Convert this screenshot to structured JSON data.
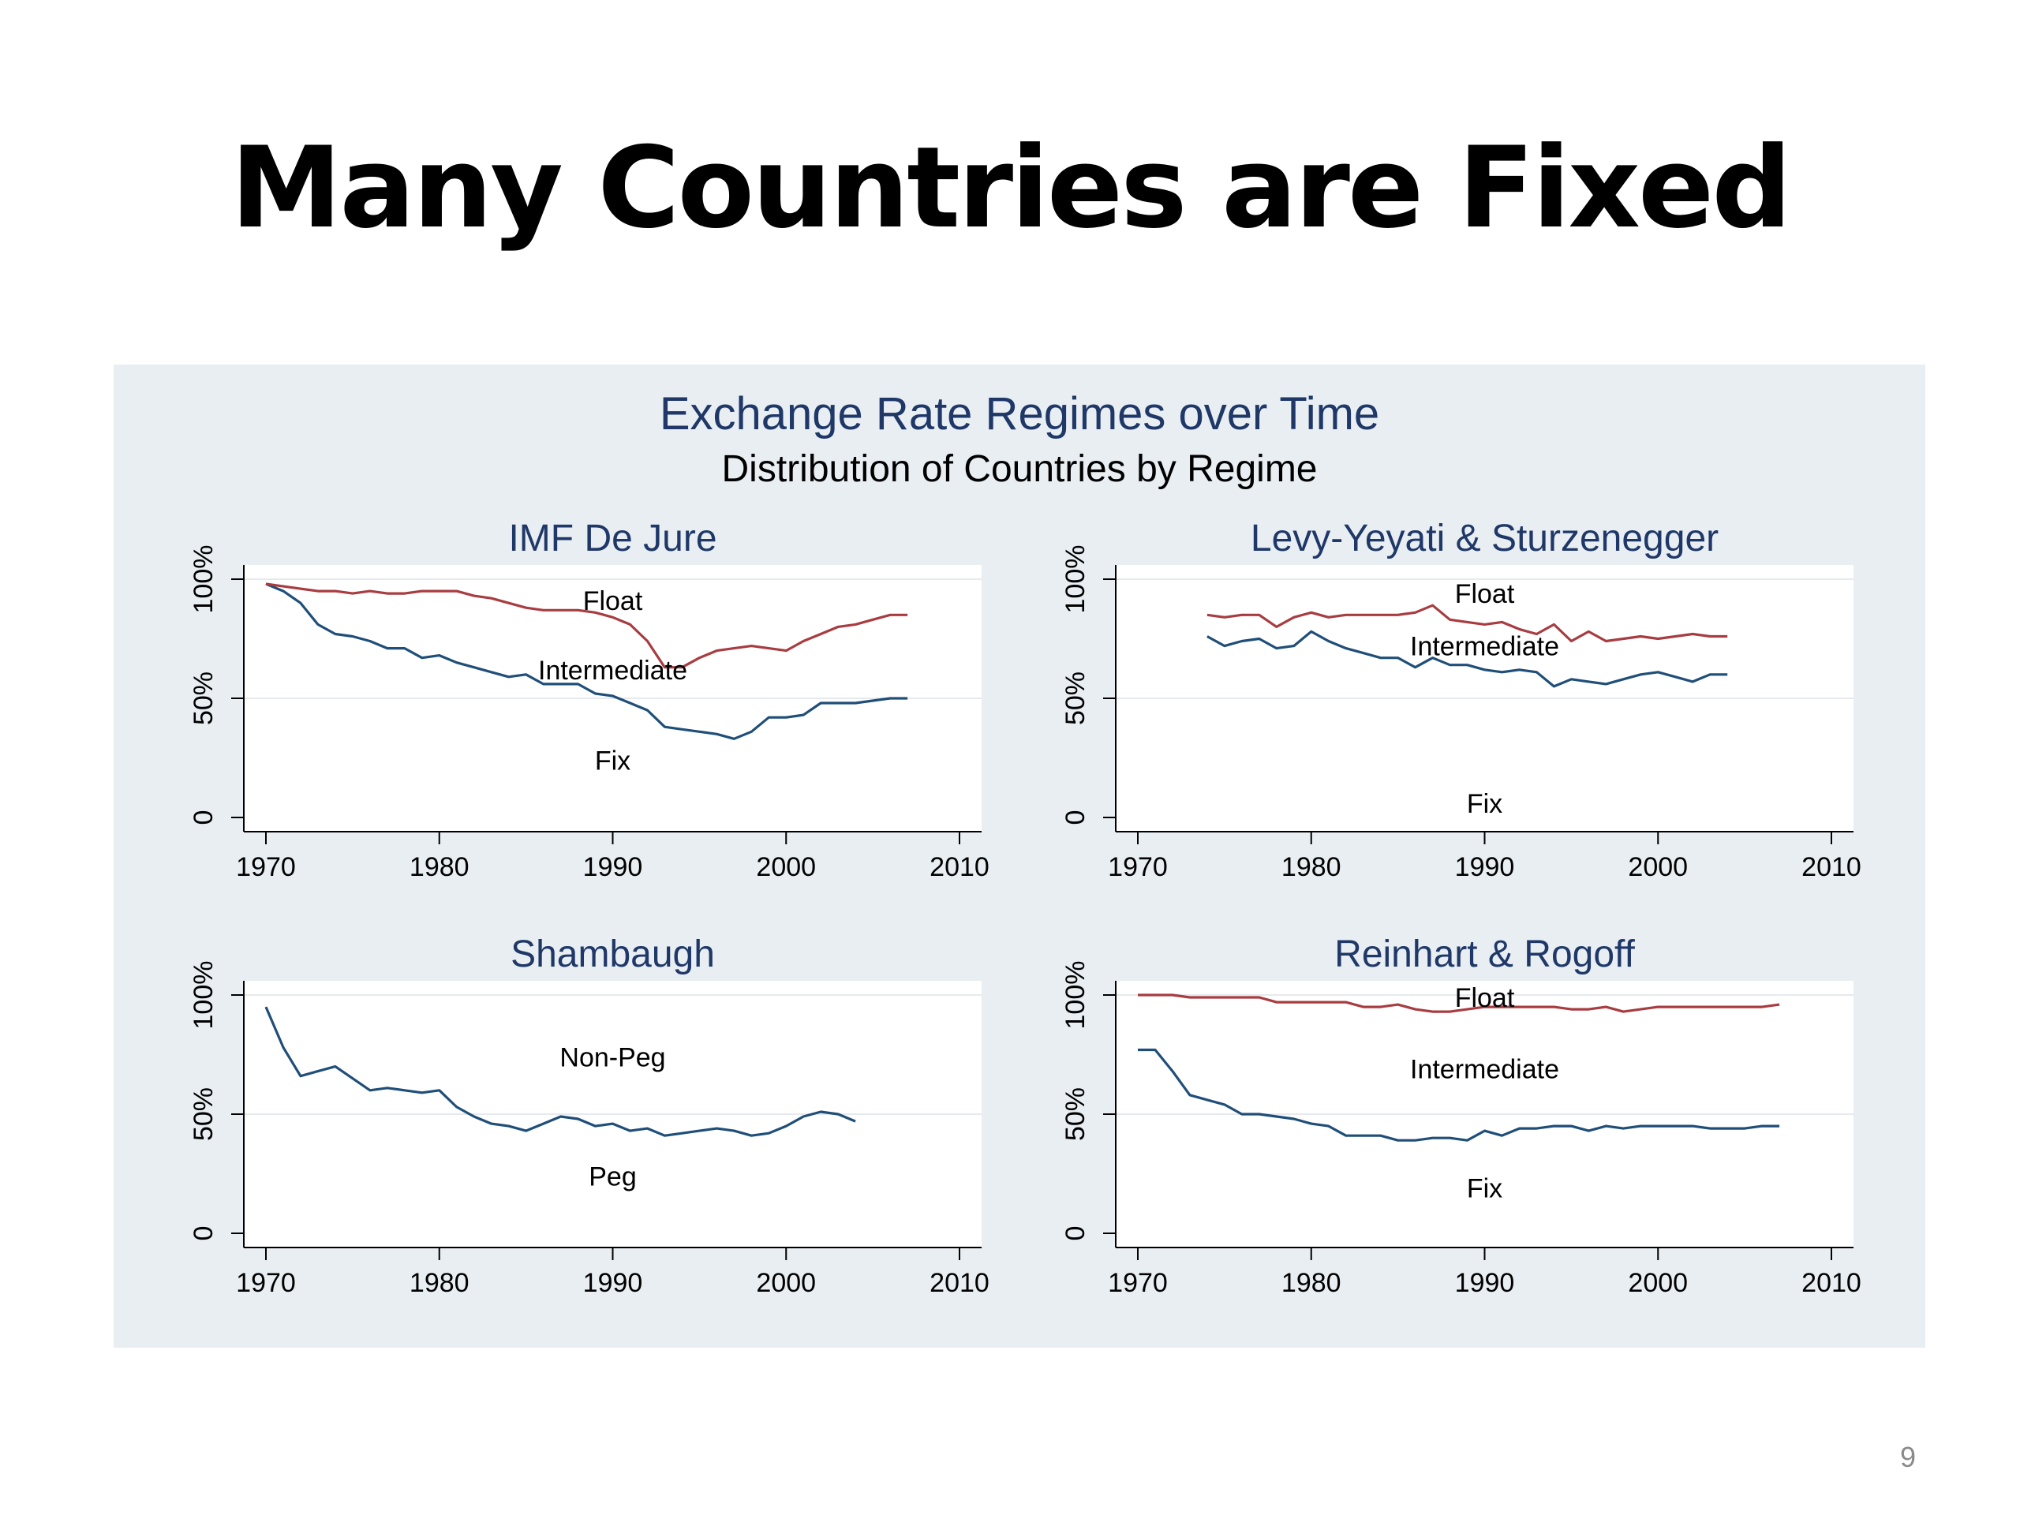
{
  "slide": {
    "title": "Many Countries are Fixed",
    "page_number": "9"
  },
  "chart_data": {
    "type": "line",
    "title": "Exchange Rate Regimes over Time",
    "subtitle": "Distribution of Countries by Regime",
    "colors": {
      "fix_boundary": "#1f4e79",
      "float_boundary": "#a83c40",
      "background": "#e8eef2",
      "plot_bg": "#ffffff",
      "title": "#1f3868"
    },
    "panels": [
      {
        "name": "IMF De Jure",
        "xlim": [
          1970,
          2010
        ],
        "ylim": [
          0,
          100
        ],
        "x_ticks": [
          "1970",
          "1980",
          "1990",
          "2000",
          "2010"
        ],
        "x_tick_values": [
          1970,
          1980,
          1990,
          2000,
          2010
        ],
        "y_ticks": [
          "0",
          "50%",
          "100%"
        ],
        "y_tick_values": [
          0,
          50,
          100
        ],
        "region_labels": [
          {
            "text": "Float",
            "x": 1990,
            "y": 91
          },
          {
            "text": "Intermediate",
            "x": 1990,
            "y": 62
          },
          {
            "text": "Fix",
            "x": 1990,
            "y": 24
          }
        ],
        "series": [
          {
            "role": "fix_boundary",
            "x": [
              1970,
              1971,
              1972,
              1973,
              1974,
              1975,
              1976,
              1977,
              1978,
              1979,
              1980,
              1981,
              1982,
              1983,
              1984,
              1985,
              1986,
              1987,
              1988,
              1989,
              1990,
              1991,
              1992,
              1993,
              1994,
              1995,
              1996,
              1997,
              1998,
              1999,
              2000,
              2001,
              2002,
              2003,
              2004,
              2005,
              2006,
              2007
            ],
            "y": [
              98,
              95,
              90,
              81,
              77,
              76,
              74,
              71,
              71,
              67,
              68,
              65,
              63,
              61,
              59,
              60,
              56,
              56,
              56,
              52,
              51,
              48,
              45,
              38,
              37,
              36,
              35,
              33,
              36,
              42,
              42,
              43,
              48,
              48,
              48,
              49,
              50,
              50
            ]
          },
          {
            "role": "float_boundary",
            "x": [
              1970,
              1971,
              1972,
              1973,
              1974,
              1975,
              1976,
              1977,
              1978,
              1979,
              1980,
              1981,
              1982,
              1983,
              1984,
              1985,
              1986,
              1987,
              1988,
              1989,
              1990,
              1991,
              1992,
              1993,
              1994,
              1995,
              1996,
              1997,
              1998,
              1999,
              2000,
              2001,
              2002,
              2003,
              2004,
              2005,
              2006,
              2007
            ],
            "y": [
              98,
              97,
              96,
              95,
              95,
              94,
              95,
              94,
              94,
              95,
              95,
              95,
              93,
              92,
              90,
              88,
              87,
              87,
              87,
              86,
              84,
              81,
              74,
              63,
              63,
              67,
              70,
              71,
              72,
              71,
              70,
              74,
              77,
              80,
              81,
              83,
              85,
              85
            ]
          }
        ]
      },
      {
        "name": "Levy-Yeyati & Sturzenegger",
        "xlim": [
          1970,
          2010
        ],
        "ylim": [
          0,
          100
        ],
        "x_ticks": [
          "1970",
          "1980",
          "1990",
          "2000",
          "2010"
        ],
        "x_tick_values": [
          1970,
          1980,
          1990,
          2000,
          2010
        ],
        "y_ticks": [
          "0",
          "50%",
          "100%"
        ],
        "y_tick_values": [
          0,
          50,
          100
        ],
        "region_labels": [
          {
            "text": "Float",
            "x": 1990,
            "y": 94
          },
          {
            "text": "Intermediate",
            "x": 1990,
            "y": 72
          },
          {
            "text": "Fix",
            "x": 1990,
            "y": 6
          }
        ],
        "series": [
          {
            "role": "fix_boundary",
            "x": [
              1974,
              1975,
              1976,
              1977,
              1978,
              1979,
              1980,
              1981,
              1982,
              1983,
              1984,
              1985,
              1986,
              1987,
              1988,
              1989,
              1990,
              1991,
              1992,
              1993,
              1994,
              1995,
              1996,
              1997,
              1998,
              1999,
              2000,
              2001,
              2002,
              2003,
              2004
            ],
            "y": [
              76,
              72,
              74,
              75,
              71,
              72,
              78,
              74,
              71,
              69,
              67,
              67,
              63,
              67,
              64,
              64,
              62,
              61,
              62,
              61,
              55,
              58,
              57,
              56,
              58,
              60,
              61,
              59,
              57,
              60,
              60
            ]
          },
          {
            "role": "float_boundary",
            "x": [
              1974,
              1975,
              1976,
              1977,
              1978,
              1979,
              1980,
              1981,
              1982,
              1983,
              1984,
              1985,
              1986,
              1987,
              1988,
              1989,
              1990,
              1991,
              1992,
              1993,
              1994,
              1995,
              1996,
              1997,
              1998,
              1999,
              2000,
              2001,
              2002,
              2003,
              2004
            ],
            "y": [
              85,
              84,
              85,
              85,
              80,
              84,
              86,
              84,
              85,
              85,
              85,
              85,
              86,
              89,
              83,
              82,
              81,
              82,
              79,
              77,
              81,
              74,
              78,
              74,
              75,
              76,
              75,
              76,
              77,
              76,
              76
            ]
          }
        ]
      },
      {
        "name": "Shambaugh",
        "xlim": [
          1970,
          2010
        ],
        "ylim": [
          0,
          100
        ],
        "x_ticks": [
          "1970",
          "1980",
          "1990",
          "2000",
          "2010"
        ],
        "x_tick_values": [
          1970,
          1980,
          1990,
          2000,
          2010
        ],
        "y_ticks": [
          "0",
          "50%",
          "100%"
        ],
        "y_tick_values": [
          0,
          50,
          100
        ],
        "region_labels": [
          {
            "text": "Non-Peg",
            "x": 1990,
            "y": 74
          },
          {
            "text": "Peg",
            "x": 1990,
            "y": 24
          }
        ],
        "series": [
          {
            "role": "fix_boundary",
            "x": [
              1970,
              1971,
              1972,
              1973,
              1974,
              1975,
              1976,
              1977,
              1978,
              1979,
              1980,
              1981,
              1982,
              1983,
              1984,
              1985,
              1986,
              1987,
              1988,
              1989,
              1990,
              1991,
              1992,
              1993,
              1994,
              1995,
              1996,
              1997,
              1998,
              1999,
              2000,
              2001,
              2002,
              2003,
              2004
            ],
            "y": [
              95,
              78,
              66,
              68,
              70,
              65,
              60,
              61,
              60,
              59,
              60,
              53,
              49,
              46,
              45,
              43,
              46,
              49,
              48,
              45,
              46,
              43,
              44,
              41,
              42,
              43,
              44,
              43,
              41,
              42,
              45,
              49,
              51,
              50,
              47
            ]
          }
        ]
      },
      {
        "name": "Reinhart & Rogoff",
        "xlim": [
          1970,
          2010
        ],
        "ylim": [
          0,
          100
        ],
        "x_ticks": [
          "1970",
          "1980",
          "1990",
          "2000",
          "2010"
        ],
        "x_tick_values": [
          1970,
          1980,
          1990,
          2000,
          2010
        ],
        "y_ticks": [
          "0",
          "50%",
          "100%"
        ],
        "y_tick_values": [
          0,
          50,
          100
        ],
        "region_labels": [
          {
            "text": "Float",
            "x": 1990,
            "y": 99
          },
          {
            "text": "Intermediate",
            "x": 1990,
            "y": 69
          },
          {
            "text": "Fix",
            "x": 1990,
            "y": 19
          }
        ],
        "series": [
          {
            "role": "fix_boundary",
            "x": [
              1970,
              1971,
              1972,
              1973,
              1974,
              1975,
              1976,
              1977,
              1978,
              1979,
              1980,
              1981,
              1982,
              1983,
              1984,
              1985,
              1986,
              1987,
              1988,
              1989,
              1990,
              1991,
              1992,
              1993,
              1994,
              1995,
              1996,
              1997,
              1998,
              1999,
              2000,
              2001,
              2002,
              2003,
              2004,
              2005,
              2006,
              2007
            ],
            "y": [
              77,
              77,
              68,
              58,
              56,
              54,
              50,
              50,
              49,
              48,
              46,
              45,
              41,
              41,
              41,
              39,
              39,
              40,
              40,
              39,
              43,
              41,
              44,
              44,
              45,
              45,
              43,
              45,
              44,
              45,
              45,
              45,
              45,
              44,
              44,
              44,
              45,
              45
            ]
          },
          {
            "role": "float_boundary",
            "x": [
              1970,
              1971,
              1972,
              1973,
              1974,
              1975,
              1976,
              1977,
              1978,
              1979,
              1980,
              1981,
              1982,
              1983,
              1984,
              1985,
              1986,
              1987,
              1988,
              1989,
              1990,
              1991,
              1992,
              1993,
              1994,
              1995,
              1996,
              1997,
              1998,
              1999,
              2000,
              2001,
              2002,
              2003,
              2004,
              2005,
              2006,
              2007
            ],
            "y": [
              100,
              100,
              100,
              99,
              99,
              99,
              99,
              99,
              97,
              97,
              97,
              97,
              97,
              95,
              95,
              96,
              94,
              93,
              93,
              94,
              95,
              95,
              95,
              95,
              95,
              94,
              94,
              95,
              93,
              94,
              95,
              95,
              95,
              95,
              95,
              95,
              95,
              96
            ]
          }
        ]
      }
    ]
  }
}
